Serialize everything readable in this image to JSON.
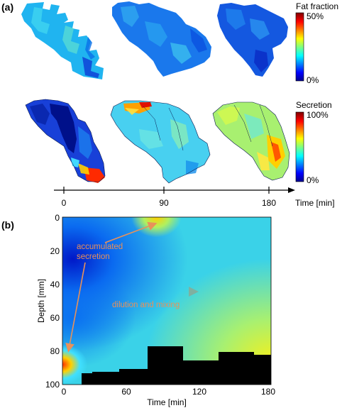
{
  "panel_a": {
    "label": "(a)",
    "fat_colorbar": {
      "title": "Fat fraction",
      "max_label": "50%",
      "min_label": "0%"
    },
    "sec_colorbar": {
      "title": "Secretion",
      "max_label": "100%",
      "min_label": "0%"
    },
    "timeline": {
      "ticks": [
        "0",
        "90",
        "180"
      ],
      "label": "Time [min]"
    }
  },
  "panel_b": {
    "label": "(b)",
    "xlabel": "Time [min]",
    "ylabel": "Depth [mm]",
    "xticks": [
      "0",
      "60",
      "120",
      "180"
    ],
    "yticks": [
      "0",
      "20",
      "40",
      "60",
      "80",
      "100"
    ],
    "annotation_secretion": [
      "accumulated",
      "secretion"
    ],
    "annotation_mixing": "dilution and mixing",
    "annotation_color": "#e8915a"
  },
  "colormap": "jet"
}
